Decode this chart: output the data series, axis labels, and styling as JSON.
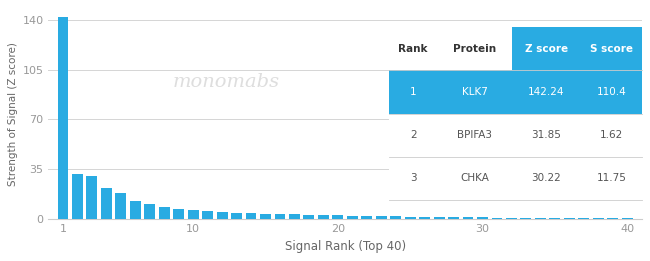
{
  "bar_values": [
    142.24,
    31.85,
    30.22,
    22.0,
    18.5,
    13.0,
    10.5,
    8.5,
    7.2,
    6.5,
    5.8,
    5.2,
    4.7,
    4.3,
    4.0,
    3.7,
    3.4,
    3.1,
    2.9,
    2.7,
    2.5,
    2.3,
    2.1,
    2.0,
    1.85,
    1.7,
    1.6,
    1.5,
    1.4,
    1.3,
    1.2,
    1.1,
    1.0,
    0.95,
    0.9,
    0.85,
    0.8,
    0.75,
    0.7,
    0.65
  ],
  "bar_color": "#29abe2",
  "background_color": "#ffffff",
  "grid_color": "#d5d5d5",
  "xlabel": "Signal Rank (Top 40)",
  "ylabel": "Strength of Signal (Z score)",
  "yticks": [
    0,
    35,
    70,
    105,
    140
  ],
  "xlim": [
    0,
    41
  ],
  "ylim": [
    0,
    148
  ],
  "xticks": [
    1,
    10,
    20,
    30,
    40
  ],
  "watermark_text": "monomabs",
  "table": {
    "headers": [
      "Rank",
      "Protein",
      "Z score",
      "S score"
    ],
    "rows": [
      [
        "1",
        "KLK7",
        "142.24",
        "110.4"
      ],
      [
        "2",
        "BPIFA3",
        "31.85",
        "1.62"
      ],
      [
        "3",
        "CHKA",
        "30.22",
        "11.75"
      ]
    ],
    "header_bg": "#ffffff",
    "highlight_bg": "#29abe2",
    "highlight_text": "#ffffff",
    "normal_text": "#555555",
    "header_text": "#333333",
    "z_score_header_bg": "#29abe2",
    "z_score_header_text": "#ffffff",
    "divider_color": "#cccccc"
  }
}
